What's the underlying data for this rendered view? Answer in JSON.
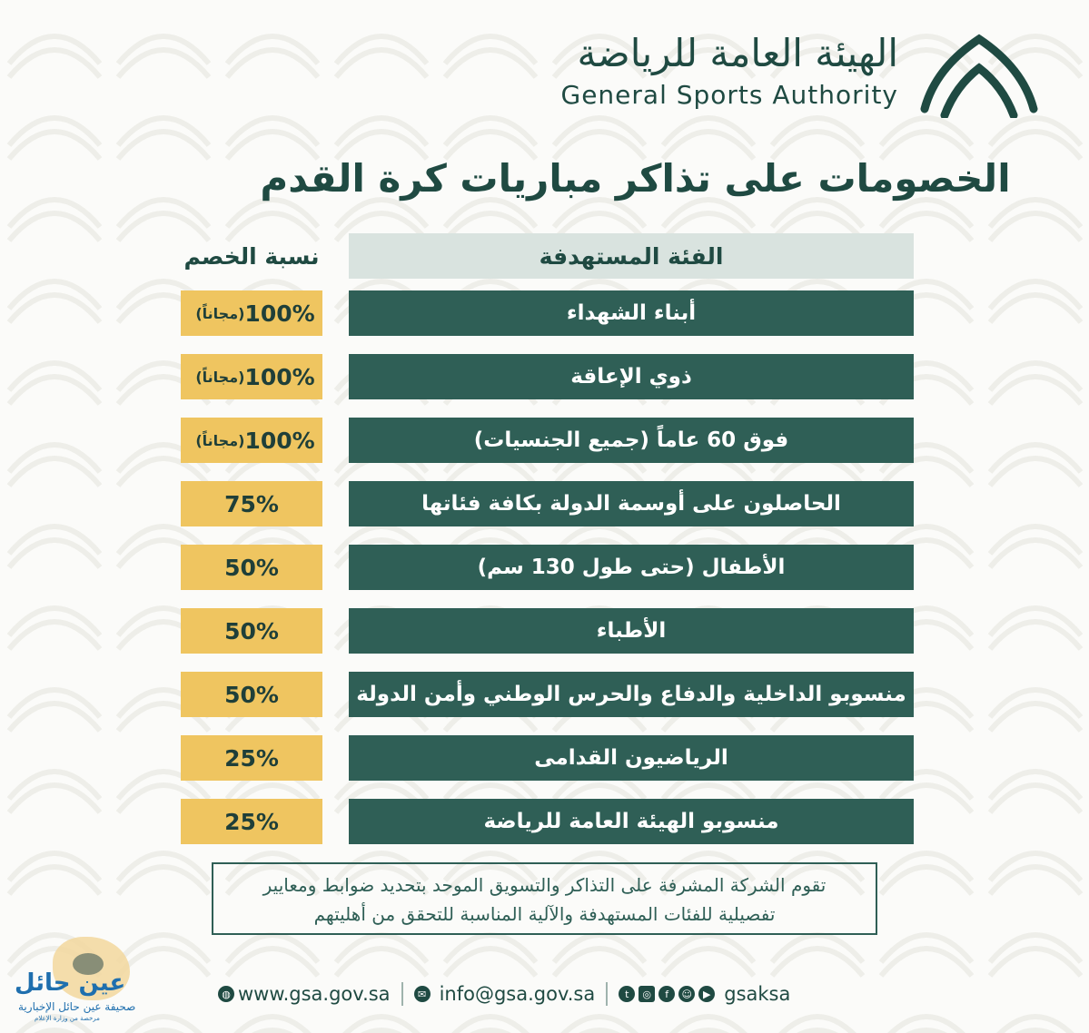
{
  "header": {
    "logo_ar": "الهيئة العامة للرياضة",
    "logo_en": "General Sports Authority"
  },
  "title": "الخصومات على تذاكر مباريات كرة القدم",
  "table": {
    "col_category": "الفئة المستهدفة",
    "col_discount": "نسبة الخصم",
    "rows": [
      {
        "category": "أبناء الشهداء",
        "discount": "100%",
        "note": "(مجاناً)"
      },
      {
        "category": "ذوي الإعاقة",
        "discount": "100%",
        "note": "(مجاناً)"
      },
      {
        "category": "فوق 60 عاماً (جميع الجنسيات)",
        "discount": "100%",
        "note": "(مجاناً)"
      },
      {
        "category": "الحاصلون على أوسمة الدولة بكافة فئاتها",
        "discount": "75%"
      },
      {
        "category": "الأطفال (حتى طول 130 سم)",
        "discount": "50%"
      },
      {
        "category": "الأطباء",
        "discount": "50%"
      },
      {
        "category": "منسوبو الداخلية والدفاع والحرس الوطني وأمن الدولة",
        "discount": "50%"
      },
      {
        "category": "الرياضيون القدامى",
        "discount": "25%"
      },
      {
        "category": "منسوبو الهيئة العامة للرياضة",
        "discount": "25%"
      }
    ]
  },
  "note": {
    "line1": "تقوم الشركة المشرفة على التذاكر والتسويق الموحد بتحديد ضوابط ومعايير",
    "line2": "تفصيلية للفئات المستهدفة والآلية المناسبة للتحقق من أهليتهم"
  },
  "footer": {
    "website": "www.gsa.gov.sa",
    "email": "info@gsa.gov.sa",
    "handle": "gsaksa",
    "icons": [
      "globe-icon",
      "mail-icon",
      "twitter-icon",
      "instagram-icon",
      "facebook-icon",
      "snapchat-icon",
      "youtube-icon"
    ]
  },
  "watermark": {
    "name": "عين حائل",
    "subtitle": "صحيفة عين حائل الإخبارية",
    "tiny": "مرخصة من وزارة الإعلام"
  },
  "colors": {
    "dark_green": "#2f5f56",
    "heading_green": "#1f4a42",
    "gold": "#efc560",
    "header_bg": "#d9e3df"
  }
}
